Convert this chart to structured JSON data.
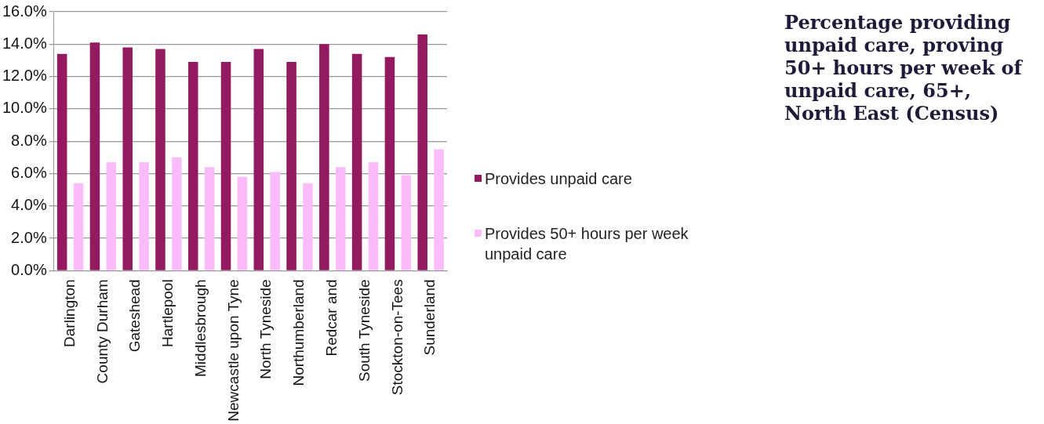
{
  "chart_data": {
    "type": "bar",
    "title": "Percentage providing unpaid care, proving 50+ hours per week of unpaid care, 65+, North East (Census)",
    "categories": [
      "Darlington",
      "County Durham",
      "Gateshead",
      "Hartlepool",
      "Middlesbrough",
      "Newcastle upon Tyne",
      "North Tyneside",
      "Northumberland",
      "Redcar and",
      "South Tyneside",
      "Stockton-on-Tees",
      "Sunderland"
    ],
    "series": [
      {
        "name": "Provides unpaid care",
        "color": "#941a60",
        "values": [
          13.4,
          14.1,
          13.8,
          13.7,
          12.9,
          12.9,
          13.7,
          12.9,
          14.0,
          13.4,
          13.2,
          14.6
        ]
      },
      {
        "name": "Provides 50+ hours per week unpaid care",
        "color": "#fbbcfb",
        "values": [
          5.4,
          6.7,
          6.7,
          7.0,
          6.4,
          5.8,
          6.1,
          5.4,
          6.4,
          6.7,
          5.9,
          7.5
        ]
      }
    ],
    "ylim": [
      0,
      16
    ],
    "yticks": [
      {
        "value": 0,
        "label": "0.0%"
      },
      {
        "value": 2,
        "label": "2.0%"
      },
      {
        "value": 4,
        "label": "4.0%"
      },
      {
        "value": 6,
        "label": "6.0%"
      },
      {
        "value": 8,
        "label": "8.0%"
      },
      {
        "value": 10,
        "label": "10.0%"
      },
      {
        "value": 12,
        "label": "12.0%"
      },
      {
        "value": 14,
        "label": "14.0%"
      },
      {
        "value": 16,
        "label": "16.0%"
      }
    ],
    "grid": "y",
    "legend": "right"
  }
}
